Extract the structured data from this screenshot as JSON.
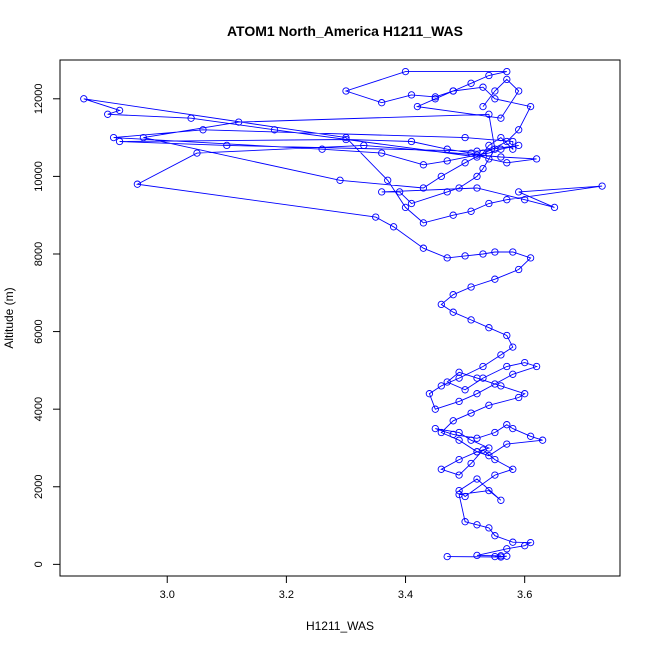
{
  "chart_data": {
    "type": "line",
    "title": "ATOM1 North_America H1211_WAS",
    "xlabel": "H1211_WAS",
    "ylabel": "Altitude (m)",
    "xlim": [
      2.82,
      3.76
    ],
    "ylim": [
      -300,
      13000
    ],
    "xticks": [
      3.0,
      3.2,
      3.4,
      3.6
    ],
    "xtick_labels": [
      "3.0",
      "3.2",
      "3.4",
      "3.6"
    ],
    "yticks": [
      0,
      2000,
      4000,
      6000,
      8000,
      10000,
      12000
    ],
    "ytick_labels": [
      "0",
      "2000",
      "4000",
      "6000",
      "8000",
      "10000",
      "12000"
    ],
    "grid": false,
    "markers": "open-circle",
    "color": "#0000ff",
    "series": [
      {
        "x": [
          3.47,
          3.56,
          3.57,
          3.55,
          3.56,
          3.52,
          3.57,
          3.6,
          3.61,
          3.58,
          3.55,
          3.54,
          3.52,
          3.5,
          3.49,
          3.54,
          3.56,
          3.52,
          3.49,
          3.5,
          3.55,
          3.58,
          3.55,
          3.53,
          3.51,
          3.49,
          3.46,
          3.49,
          3.52,
          3.54,
          3.51,
          3.49,
          3.45,
          3.48,
          3.52,
          3.55,
          3.57,
          3.58,
          3.61,
          3.63,
          3.57,
          3.54,
          3.52,
          3.49,
          3.46,
          3.48,
          3.51,
          3.54,
          3.59,
          3.6,
          3.56,
          3.52,
          3.49,
          3.47,
          3.5,
          3.53,
          3.57,
          3.6,
          3.62,
          3.58,
          3.55,
          3.52,
          3.49,
          3.45,
          3.44,
          3.46,
          3.49,
          3.53,
          3.56,
          3.58,
          3.57,
          3.54,
          3.51,
          3.48,
          3.46,
          3.48,
          3.51,
          3.55,
          3.59,
          3.61,
          3.58,
          3.55,
          3.53,
          3.5,
          3.47,
          3.43,
          3.38,
          3.35,
          2.95,
          3.05,
          3.33,
          3.56,
          3.62,
          3.57,
          3.54,
          3.51,
          3.47,
          3.41,
          3.3,
          2.92,
          3.1,
          3.52,
          3.59,
          3.56,
          3.54,
          3.52,
          3.47,
          3.43,
          3.36,
          3.26,
          2.91,
          3.06,
          3.5,
          3.58,
          3.58,
          3.56,
          3.54,
          3.53,
          3.5,
          3.46,
          3.43,
          3.29,
          2.96,
          3.12,
          3.54,
          3.55,
          3.53,
          3.52,
          3.49,
          3.47,
          3.41,
          3.39,
          3.36,
          3.52,
          3.6,
          3.65,
          3.59,
          3.73,
          3.57,
          3.54,
          3.51,
          3.48,
          3.43,
          3.4,
          3.37,
          3.3,
          2.86,
          2.92,
          2.9,
          3.04,
          3.18,
          3.52,
          3.57,
          3.59,
          3.61,
          3.55,
          3.53,
          3.48,
          3.45,
          3.41,
          3.36,
          3.3,
          3.4,
          3.57,
          3.54,
          3.51,
          3.48,
          3.45,
          3.42,
          3.56,
          3.59,
          3.57,
          3.55,
          3.53
        ],
        "y": [
          200,
          190,
          210,
          200,
          220,
          230,
          400,
          480,
          560,
          570,
          740,
          940,
          1020,
          1100,
          1800,
          1900,
          1650,
          2200,
          1900,
          1750,
          2300,
          2450,
          2700,
          2950,
          2600,
          2300,
          2450,
          2700,
          2900,
          3000,
          3200,
          3400,
          3500,
          3350,
          3250,
          3400,
          3600,
          3500,
          3300,
          3200,
          3100,
          2800,
          2900,
          3200,
          3400,
          3700,
          3900,
          4100,
          4300,
          4400,
          4600,
          4800,
          4950,
          4700,
          4500,
          4800,
          5100,
          5200,
          5100,
          4900,
          4650,
          4400,
          4200,
          4000,
          4400,
          4600,
          4800,
          5100,
          5400,
          5600,
          5900,
          6100,
          6300,
          6500,
          6700,
          6950,
          7150,
          7350,
          7600,
          7900,
          8050,
          8050,
          8000,
          7950,
          7900,
          8150,
          8700,
          8950,
          9800,
          10600,
          10800,
          10500,
          10450,
          10350,
          10450,
          10600,
          10700,
          10900,
          10950,
          10900,
          10800,
          10650,
          10800,
          10700,
          10600,
          10550,
          10400,
          10300,
          10600,
          10700,
          11000,
          11200,
          11000,
          10900,
          10700,
          11000,
          10800,
          10600,
          10350,
          10000,
          9700,
          9900,
          11000,
          11400,
          11600,
          10700,
          10200,
          10000,
          9700,
          9600,
          9300,
          9600,
          9600,
          9700,
          9400,
          9200,
          9600,
          9750,
          9400,
          9300,
          9100,
          9000,
          8800,
          9200,
          9900,
          11000,
          12000,
          11700,
          11600,
          11500,
          11200,
          10500,
          10900,
          11200,
          11800,
          12000,
          12300,
          12200,
          12050,
          12100,
          11900,
          12200,
          12700,
          12700,
          12600,
          12400,
          12200,
          12000,
          11800,
          11500,
          12200,
          12500,
          12200,
          11800
        ]
      }
    ]
  }
}
